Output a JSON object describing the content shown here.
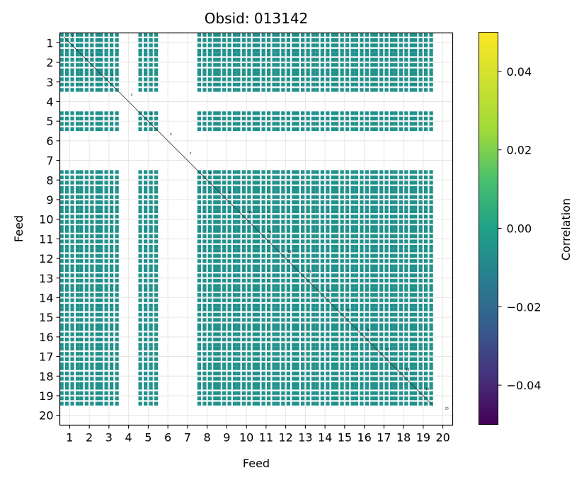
{
  "chart_data": {
    "type": "heatmap",
    "title": "Obsid: 013142",
    "xlabel": "Feed",
    "ylabel": "Feed",
    "x_ticks": [
      "1",
      "2",
      "3",
      "4",
      "5",
      "6",
      "7",
      "8",
      "9",
      "10",
      "11",
      "12",
      "13",
      "14",
      "15",
      "16",
      "17",
      "18",
      "19",
      "20"
    ],
    "y_ticks": [
      "1",
      "2",
      "3",
      "4",
      "5",
      "6",
      "7",
      "8",
      "9",
      "10",
      "11",
      "12",
      "13",
      "14",
      "15",
      "16",
      "17",
      "18",
      "19",
      "20"
    ],
    "xlim": [
      0.5,
      20.5
    ],
    "ylim": [
      20.5,
      0.5
    ],
    "active_feeds": [
      1,
      2,
      3,
      5,
      8,
      9,
      10,
      11,
      12,
      13,
      14,
      15,
      16,
      17,
      18,
      19
    ],
    "inactive_feeds": [
      4,
      6,
      7,
      20
    ],
    "blocks_per_cell": 4,
    "block_value": 0.0,
    "diagonal": "line with small feed-number labels",
    "grid": true,
    "colorbar": {
      "label": "Correlation",
      "colormap": "viridis",
      "vmin": -0.05,
      "vmax": 0.05,
      "ticks": [
        -0.04,
        -0.02,
        0.0,
        0.02,
        0.04
      ],
      "tick_labels": [
        "−0.04",
        "−0.02",
        "0.00",
        "0.02",
        "0.04"
      ]
    },
    "colors": {
      "zero": "#21918c",
      "grid": "#e6e6e6",
      "diagonal": "#333333"
    }
  }
}
